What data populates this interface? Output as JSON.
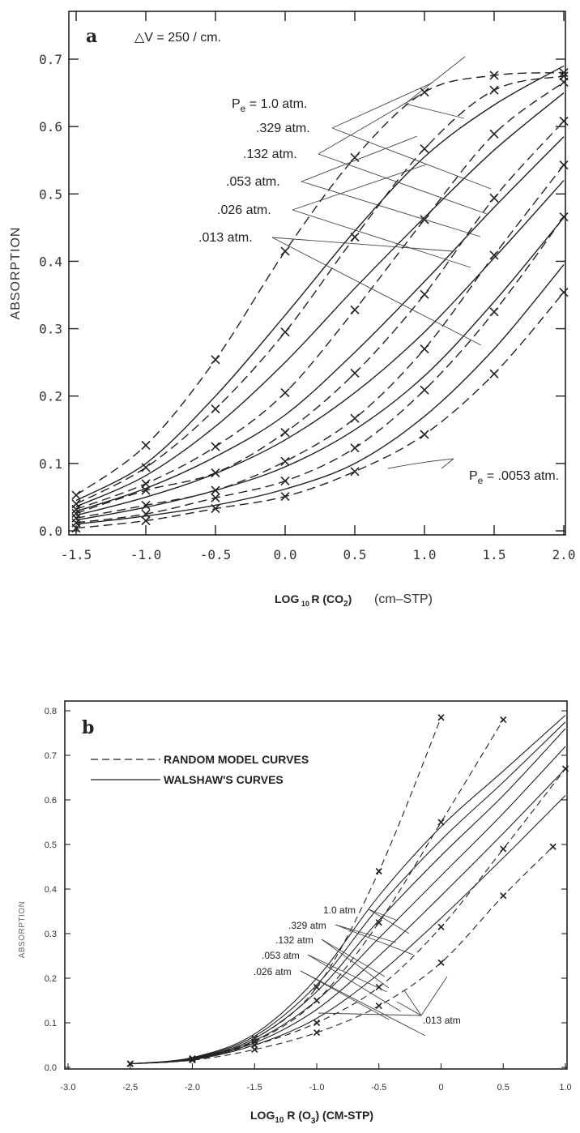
{
  "chart_data": [
    {
      "type": "line",
      "panel": "a",
      "annotation": "△V = 250 / cm.",
      "xlabel": "LOG₁₀ R (CO₂)",
      "xlabel_bold": "LOG",
      "xlabel_sub": "10",
      "xlabel_r": "R",
      "xlabel_species": "CO",
      "xlabel_species_sub": "2",
      "xlabel_units": "(cm–STP)",
      "ylabel": "ABSORPTION",
      "xlim": [
        -1.5,
        2.0
      ],
      "ylim": [
        0.0,
        0.7
      ],
      "x_ticks": [
        -1.5,
        -1.0,
        -0.5,
        0.0,
        0.5,
        1.0,
        1.5,
        2.0
      ],
      "x_tick_labels": [
        "-1.5",
        "-1.0",
        "-0.5",
        "0.0",
        "0.5",
        "1.0",
        "1.5",
        "2.0"
      ],
      "y_ticks": [
        0.0,
        0.1,
        0.2,
        0.3,
        0.4,
        0.5,
        0.6,
        0.7
      ],
      "y_tick_labels": [
        "0.0",
        "0.1",
        "0.2",
        "0.3",
        "0.4",
        "0.5",
        "0.6",
        "0.7"
      ],
      "pressure_labels": [
        "Pe = 1.0 atm.",
        ".329 atm.",
        ".132 atm.",
        ".053 atm.",
        ".026 atm.",
        ".013 atm.",
        "Pe = .0053 atm."
      ],
      "series": [
        {
          "style": "dashed",
          "marker": "x",
          "x": [
            -1.5,
            -1.0,
            -0.5,
            0.0,
            0.5,
            1.0,
            1.5,
            2.0
          ],
          "values": [
            0.053,
            0.127,
            0.254,
            0.415,
            0.554,
            0.651,
            0.676,
            0.68
          ]
        },
        {
          "style": "solid",
          "x": [
            -1.5,
            -1.0,
            -0.5,
            0.0,
            0.5,
            1.0,
            1.5,
            2.0
          ],
          "values": [
            0.045,
            0.1,
            0.2,
            0.32,
            0.445,
            0.555,
            0.632,
            0.69
          ]
        },
        {
          "style": "dashed",
          "marker": "x",
          "x": [
            -1.5,
            -1.0,
            -0.5,
            0.0,
            0.5,
            1.0,
            1.5,
            2.0
          ],
          "values": [
            0.04,
            0.094,
            0.181,
            0.295,
            0.436,
            0.567,
            0.654,
            0.675
          ]
        },
        {
          "style": "solid",
          "x": [
            -1.5,
            -1.0,
            -0.5,
            0.0,
            0.5,
            1.0,
            1.5,
            2.0
          ],
          "values": [
            0.036,
            0.082,
            0.155,
            0.25,
            0.36,
            0.465,
            0.565,
            0.65
          ]
        },
        {
          "style": "dashed",
          "marker": "x",
          "x": [
            -1.5,
            -1.0,
            -0.5,
            0.0,
            0.5,
            1.0,
            1.5,
            2.0
          ],
          "values": [
            0.032,
            0.07,
            0.125,
            0.205,
            0.328,
            0.462,
            0.589,
            0.666
          ]
        },
        {
          "style": "solid",
          "x": [
            -1.5,
            -1.0,
            -0.5,
            0.0,
            0.5,
            1.0,
            1.5,
            2.0
          ],
          "values": [
            0.029,
            0.063,
            0.11,
            0.172,
            0.265,
            0.37,
            0.48,
            0.585
          ]
        },
        {
          "style": "dashed",
          "marker": "x",
          "x": [
            -1.5,
            -1.0,
            -0.5,
            0.0,
            0.5,
            1.0,
            1.5,
            2.0
          ],
          "values": [
            0.026,
            0.06,
            0.086,
            0.146,
            0.234,
            0.351,
            0.494,
            0.608
          ]
        },
        {
          "style": "solid",
          "x": [
            -1.5,
            -1.0,
            -0.5,
            0.0,
            0.5,
            1.0,
            1.5,
            2.0
          ],
          "values": [
            0.023,
            0.05,
            0.085,
            0.135,
            0.205,
            0.295,
            0.405,
            0.52
          ]
        },
        {
          "style": "dashed",
          "marker": "x",
          "x": [
            -1.5,
            -1.0,
            -0.5,
            0.0,
            0.5,
            1.0,
            1.5,
            2.0
          ],
          "values": [
            0.019,
            0.038,
            0.06,
            0.103,
            0.167,
            0.27,
            0.409,
            0.543
          ]
        },
        {
          "style": "solid",
          "x": [
            -1.5,
            -1.0,
            -0.5,
            0.0,
            0.5,
            1.0,
            1.5,
            2.0
          ],
          "values": [
            0.016,
            0.035,
            0.06,
            0.095,
            0.15,
            0.23,
            0.34,
            0.465
          ]
        },
        {
          "style": "dashed",
          "marker": "x",
          "x": [
            -1.5,
            -1.0,
            -0.5,
            0.0,
            0.5,
            1.0,
            1.5,
            2.0
          ],
          "values": [
            0.012,
            0.025,
            0.049,
            0.074,
            0.123,
            0.209,
            0.325,
            0.466
          ]
        },
        {
          "style": "solid",
          "x": [
            -1.5,
            -1.0,
            -0.5,
            0.0,
            0.5,
            1.0,
            1.5,
            2.0
          ],
          "values": [
            0.01,
            0.022,
            0.038,
            0.062,
            0.1,
            0.17,
            0.27,
            0.395
          ]
        },
        {
          "style": "dashed",
          "marker": "x",
          "x": [
            -1.5,
            -1.0,
            -0.5,
            0.0,
            0.5,
            1.0,
            1.5,
            2.0
          ],
          "values": [
            0.004,
            0.015,
            0.033,
            0.051,
            0.088,
            0.143,
            0.233,
            0.354
          ]
        }
      ]
    },
    {
      "type": "line",
      "panel": "b",
      "xlabel": "LOG₁₀ R (O₃) (CM-STP)",
      "xlabel_bold": "LOG",
      "xlabel_sub": "10",
      "xlabel_r": "R",
      "xlabel_species": "O",
      "xlabel_species_sub": "3",
      "xlabel_units": "(CM-STP)",
      "ylabel": "ABSORPTION",
      "xlim": [
        -3.0,
        1.0
      ],
      "ylim": [
        0.0,
        0.8
      ],
      "x_ticks": [
        -3.0,
        -2.5,
        -2.0,
        -1.5,
        -1.0,
        -0.5,
        0.0,
        0.5,
        1.0
      ],
      "x_tick_labels": [
        "-3.0",
        "-2.5",
        "-2.0",
        "-1.5",
        "-1.0",
        "-0.5",
        "0",
        "0.5",
        "1.0"
      ],
      "y_ticks": [
        0.0,
        0.1,
        0.2,
        0.3,
        0.4,
        0.5,
        0.6,
        0.7,
        0.8
      ],
      "y_tick_labels": [
        "0.0",
        "0.1",
        "0.2",
        "0.3",
        "0.4",
        "0.5",
        "0.6",
        "0.7",
        "0.8"
      ],
      "legend": [
        {
          "style": "dashed",
          "label": "RANDOM MODEL CURVES"
        },
        {
          "style": "solid",
          "label": "WALSHAW'S CURVES"
        }
      ],
      "pressure_labels": [
        "1.0 atm",
        ".329 atm",
        ".132 atm",
        ".053 atm",
        ".026 atm",
        ".013 atm"
      ],
      "series": [
        {
          "style": "dashed",
          "marker": "x",
          "x": [
            -2.5,
            -2.0,
            -1.5,
            -1.0,
            -0.5,
            0.0
          ],
          "values": [
            0.008,
            0.02,
            0.065,
            0.18,
            0.44,
            0.785
          ]
        },
        {
          "style": "dashed",
          "marker": "x",
          "x": [
            -2.5,
            -2.0,
            -1.5,
            -1.0,
            -0.5,
            0.0,
            0.5
          ],
          "values": [
            0.008,
            0.018,
            0.058,
            0.15,
            0.325,
            0.55,
            0.78
          ]
        },
        {
          "style": "dashed",
          "marker": "x",
          "x": [
            -2.5,
            -2.0,
            -1.5,
            -1.0,
            -0.5,
            0.0,
            0.5,
            1.0
          ],
          "values": [
            0.008,
            0.017,
            0.05,
            0.1,
            0.18,
            0.315,
            0.49,
            0.67
          ]
        },
        {
          "style": "dashed",
          "marker": "x",
          "x": [
            -2.5,
            -2.0,
            -1.5,
            -1.0,
            -0.5,
            0.0,
            0.5,
            0.9
          ],
          "values": [
            0.008,
            0.016,
            0.04,
            0.078,
            0.138,
            0.235,
            0.385,
            0.495
          ]
        },
        {
          "style": "solid",
          "x": [
            -2.5,
            -2.0,
            -1.5,
            -1.0,
            -0.5,
            0.0,
            0.5,
            1.0
          ],
          "values": [
            0.008,
            0.022,
            0.075,
            0.2,
            0.385,
            0.54,
            0.665,
            0.79
          ]
        },
        {
          "style": "solid",
          "x": [
            -2.5,
            -2.0,
            -1.5,
            -1.0,
            -0.5,
            0.0,
            0.5,
            1.0
          ],
          "values": [
            0.008,
            0.021,
            0.07,
            0.185,
            0.36,
            0.51,
            0.64,
            0.775
          ]
        },
        {
          "style": "solid",
          "x": [
            -2.5,
            -2.0,
            -1.5,
            -1.0,
            -0.5,
            0.0,
            0.5,
            1.0
          ],
          "values": [
            0.008,
            0.02,
            0.065,
            0.17,
            0.33,
            0.475,
            0.61,
            0.76
          ]
        },
        {
          "style": "solid",
          "x": [
            -2.5,
            -2.0,
            -1.5,
            -1.0,
            -0.5,
            0.0,
            0.5,
            1.0
          ],
          "values": [
            0.008,
            0.019,
            0.06,
            0.15,
            0.29,
            0.43,
            0.57,
            0.72
          ]
        },
        {
          "style": "solid",
          "x": [
            -2.5,
            -2.0,
            -1.5,
            -1.0,
            -0.5,
            0.0,
            0.5,
            1.0
          ],
          "values": [
            0.008,
            0.018,
            0.055,
            0.13,
            0.25,
            0.385,
            0.525,
            0.67
          ]
        },
        {
          "style": "solid",
          "x": [
            -2.5,
            -2.0,
            -1.5,
            -1.0,
            -0.5,
            0.0,
            0.5,
            1.0
          ],
          "values": [
            0.008,
            0.017,
            0.05,
            0.11,
            0.21,
            0.335,
            0.47,
            0.61
          ]
        }
      ]
    }
  ]
}
